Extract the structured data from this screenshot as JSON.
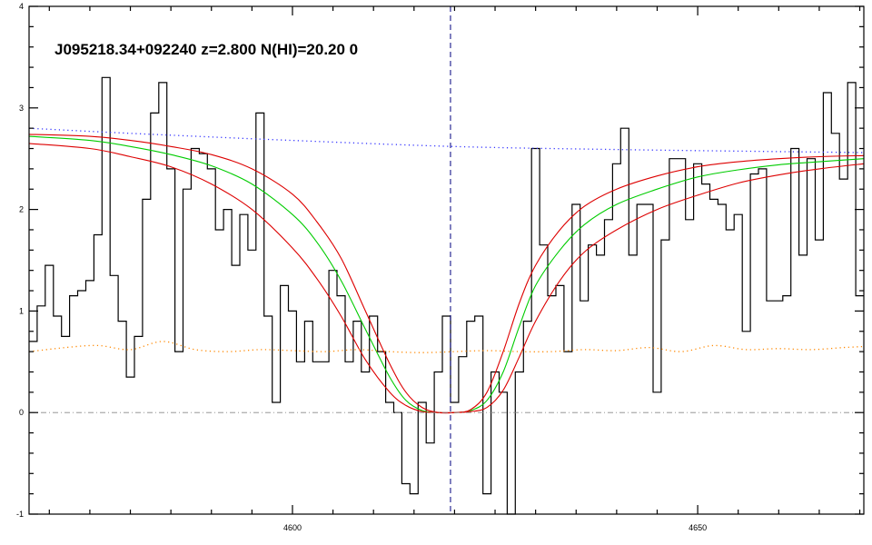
{
  "chart_data": {
    "type": "line",
    "title": "J095218.34+092240 z=2.800 N(HI)=20.20 0",
    "xlabel": "",
    "ylabel": "",
    "xlim": [
      4567.5,
      4670.5
    ],
    "ylim": [
      -1,
      4
    ],
    "x_ticks": [
      4600,
      4650
    ],
    "y_ticks": [
      -1,
      0,
      1,
      2,
      3,
      4
    ],
    "grid": false,
    "reference_lines": {
      "dla_center_x": 4619.5,
      "zero_level_y": 0
    },
    "series": [
      {
        "name": "",
        "style": "step",
        "color": "#000000",
        "x": [
          4567.5,
          4568.5,
          4569.5,
          4570.5,
          4571.5,
          4572.5,
          4573.5,
          4574.5,
          4575.5,
          4576.5,
          4577.5,
          4578.5,
          4579.5,
          4580.5,
          4581.5,
          4582.5,
          4583.5,
          4584.5,
          4585.5,
          4586.5,
          4587.5,
          4588.5,
          4589.5,
          4590.5,
          4591.5,
          4592.5,
          4593.5,
          4594.5,
          4595.5,
          4596.5,
          4597.5,
          4598.5,
          4599.5,
          4600.5,
          4601.5,
          4602.5,
          4603.5,
          4604.5,
          4605.5,
          4606.5,
          4607.5,
          4608.5,
          4609.5,
          4610.5,
          4611.5,
          4612.5,
          4613.5,
          4614.5,
          4615.5,
          4616.5,
          4617.5,
          4618.5,
          4619.5,
          4620.5,
          4621.5,
          4622.5,
          4623.5,
          4624.5,
          4625.5,
          4626.5,
          4627.5,
          4628.5,
          4629.5,
          4630.5,
          4631.5,
          4632.5,
          4633.5,
          4634.5,
          4635.5,
          4636.5,
          4637.5,
          4638.5,
          4639.5,
          4640.5,
          4641.5,
          4642.5,
          4643.5,
          4644.5,
          4645.5,
          4646.5,
          4647.5,
          4648.5,
          4649.5,
          4650.5,
          4651.5,
          4652.5,
          4653.5,
          4654.5,
          4655.5,
          4656.5,
          4657.5,
          4658.5,
          4659.5,
          4660.5,
          4661.5,
          4662.5,
          4663.5,
          4664.5,
          4665.5,
          4666.5,
          4667.5,
          4668.5,
          4669.5
        ],
        "y": [
          0.7,
          1.05,
          1.45,
          0.95,
          0.75,
          1.15,
          1.2,
          1.3,
          1.75,
          3.3,
          1.35,
          0.9,
          0.35,
          0.75,
          2.1,
          2.95,
          3.25,
          2.4,
          0.6,
          2.2,
          2.6,
          2.55,
          2.4,
          1.8,
          2.0,
          1.45,
          1.95,
          1.6,
          2.95,
          0.95,
          0.1,
          1.25,
          1.0,
          0.5,
          0.9,
          0.5,
          0.5,
          1.4,
          1.15,
          0.5,
          0.9,
          0.4,
          0.95,
          0.6,
          0.1,
          0.0,
          -0.7,
          -0.8,
          0.1,
          -0.3,
          0.4,
          0.95,
          0.1,
          0.55,
          0.9,
          0.95,
          -0.8,
          0.4,
          0.2,
          -1.0,
          0.4,
          0.9,
          2.6,
          1.65,
          1.15,
          1.25,
          0.6,
          2.05,
          1.1,
          1.65,
          1.55,
          1.9,
          2.45,
          2.8,
          1.55,
          2.05,
          2.05,
          0.2,
          1.7,
          2.5,
          2.5,
          1.9,
          2.45,
          2.25,
          2.1,
          2.05,
          1.8,
          1.95,
          0.8,
          2.35,
          2.4,
          1.1,
          1.1,
          1.15,
          2.6,
          1.55,
          2.5,
          1.7,
          3.15,
          2.75,
          2.3,
          3.25,
          1.15
        ]
      },
      {
        "name": "",
        "style": "smooth",
        "color": "#00cc00",
        "x": [
          4567.5,
          4575,
          4580,
          4585,
          4590,
          4595,
          4600,
          4603,
          4606,
          4609,
          4612,
          4614,
          4616,
          4618,
          4620,
          4622,
          4624,
          4626,
          4628,
          4630,
          4633,
          4636,
          4640,
          4645,
          4650,
          4655,
          4660,
          4665,
          4670.5
        ],
        "y": [
          2.72,
          2.68,
          2.62,
          2.54,
          2.43,
          2.25,
          1.95,
          1.68,
          1.3,
          0.82,
          0.35,
          0.12,
          0.02,
          0.0,
          0.0,
          0.02,
          0.12,
          0.4,
          0.85,
          1.25,
          1.6,
          1.85,
          2.05,
          2.2,
          2.32,
          2.39,
          2.44,
          2.47,
          2.5
        ]
      },
      {
        "name": "",
        "style": "smooth",
        "color": "#dd0000",
        "x": [
          4567.5,
          4575,
          4580,
          4585,
          4590,
          4595,
          4600,
          4603,
          4606,
          4609,
          4612,
          4614,
          4616,
          4618,
          4620,
          4622,
          4624,
          4626,
          4628,
          4630,
          4633,
          4636,
          4640,
          4645,
          4650,
          4655,
          4660,
          4665,
          4670.5
        ],
        "y": [
          2.74,
          2.72,
          2.68,
          2.62,
          2.54,
          2.4,
          2.15,
          1.88,
          1.52,
          1.0,
          0.48,
          0.2,
          0.05,
          0.0,
          0.0,
          0.03,
          0.2,
          0.6,
          1.08,
          1.45,
          1.8,
          2.03,
          2.2,
          2.33,
          2.42,
          2.47,
          2.5,
          2.52,
          2.53
        ]
      },
      {
        "name": "",
        "style": "smooth",
        "color": "#dd0000",
        "x": [
          4567.5,
          4575,
          4580,
          4585,
          4590,
          4595,
          4600,
          4603,
          4606,
          4609,
          4612,
          4614,
          4616,
          4618,
          4620,
          4622,
          4624,
          4626,
          4628,
          4630,
          4633,
          4636,
          4640,
          4645,
          4650,
          4655,
          4660,
          4665,
          4670.5
        ],
        "y": [
          2.65,
          2.6,
          2.52,
          2.42,
          2.25,
          2.0,
          1.62,
          1.32,
          0.95,
          0.52,
          0.2,
          0.07,
          0.01,
          0.0,
          0.0,
          0.01,
          0.05,
          0.22,
          0.55,
          0.9,
          1.3,
          1.58,
          1.8,
          2.0,
          2.14,
          2.26,
          2.34,
          2.4,
          2.45
        ]
      },
      {
        "name": "",
        "style": "dotted",
        "color": "#3333ff",
        "x": [
          4567.5,
          4580,
          4600,
          4620,
          4640,
          4660,
          4670.5
        ],
        "y": [
          2.8,
          2.75,
          2.68,
          2.62,
          2.59,
          2.57,
          2.56
        ]
      },
      {
        "name": "",
        "style": "dotted",
        "color": "#ff8800",
        "x": [
          4567.5,
          4572,
          4576,
          4580,
          4584,
          4588,
          4592,
          4596,
          4600,
          4604,
          4608,
          4612,
          4616,
          4620,
          4624,
          4628,
          4632,
          4636,
          4640,
          4644,
          4648,
          4652,
          4656,
          4660,
          4664,
          4668,
          4670.5
        ],
        "y": [
          0.6,
          0.64,
          0.66,
          0.62,
          0.7,
          0.62,
          0.6,
          0.62,
          0.61,
          0.6,
          0.62,
          0.6,
          0.59,
          0.6,
          0.61,
          0.6,
          0.6,
          0.62,
          0.61,
          0.64,
          0.6,
          0.66,
          0.62,
          0.63,
          0.62,
          0.64,
          0.65
        ]
      }
    ]
  }
}
